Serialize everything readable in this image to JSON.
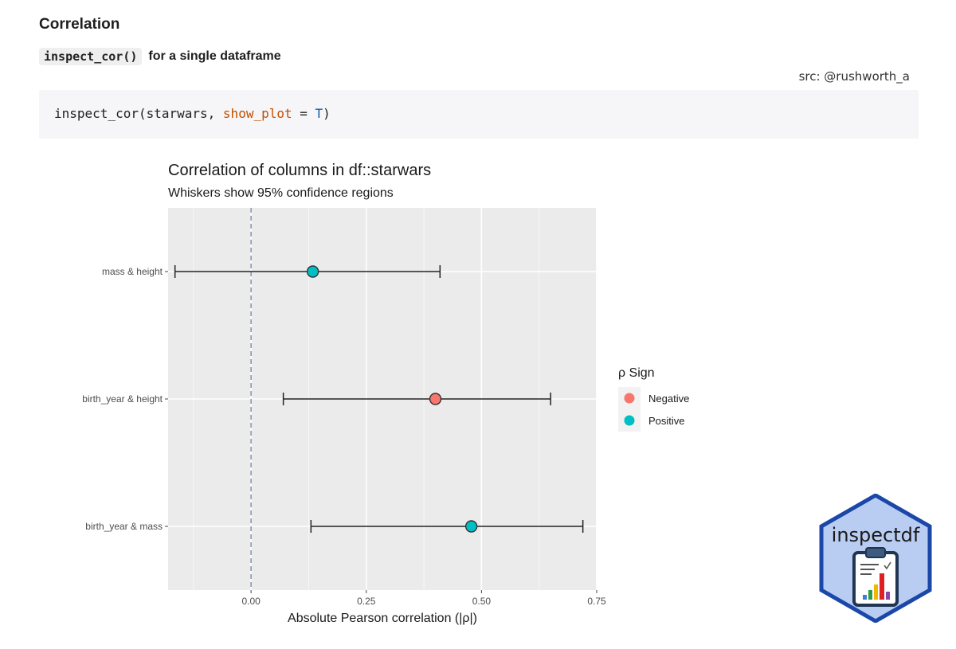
{
  "page": {
    "section_title": "Correlation",
    "inline_code": "inspect_cor()",
    "subhead_text": "for a single dataframe",
    "src_credit": "src: @rushworth_a"
  },
  "code": {
    "fn": "inspect_cor(starwars, ",
    "arg_name": "show_plot",
    "op": " = ",
    "arg_value": "T",
    "close": ")"
  },
  "chart_data": {
    "type": "scatter",
    "title": "Correlation of columns in df::starwars",
    "subtitle": "Whiskers show 95% confidence regions",
    "xlabel": "Absolute Pearson correlation (|ρ|)",
    "ylabel": "",
    "xlim": [
      -0.18,
      0.75
    ],
    "x_ticks": [
      0.0,
      0.25,
      0.5,
      0.75
    ],
    "x_tick_labels": [
      "0.00",
      "0.25",
      "0.50",
      "0.75"
    ],
    "reference_line": 0,
    "grid": true,
    "legend": {
      "title": "ρ Sign",
      "placement": "right",
      "entries": [
        {
          "label": "Negative",
          "color": "#f8766d"
        },
        {
          "label": "Positive",
          "color": "#00bfc4"
        }
      ]
    },
    "categories": [
      "mass & height",
      "birth_year & height",
      "birth_year & mass"
    ],
    "points": [
      {
        "pair": "mass & height",
        "corr": 0.134,
        "lower": -0.165,
        "upper": 0.41,
        "sign": "Positive"
      },
      {
        "pair": "birth_year & height",
        "corr": 0.4,
        "lower": 0.07,
        "upper": 0.65,
        "sign": "Negative"
      },
      {
        "pair": "birth_year & mass",
        "corr": 0.478,
        "lower": 0.13,
        "upper": 0.72,
        "sign": "Positive"
      }
    ]
  },
  "logo": {
    "text": "inspectdf",
    "bg_color": "#b9cdf3",
    "border_color": "#1a47a8"
  }
}
